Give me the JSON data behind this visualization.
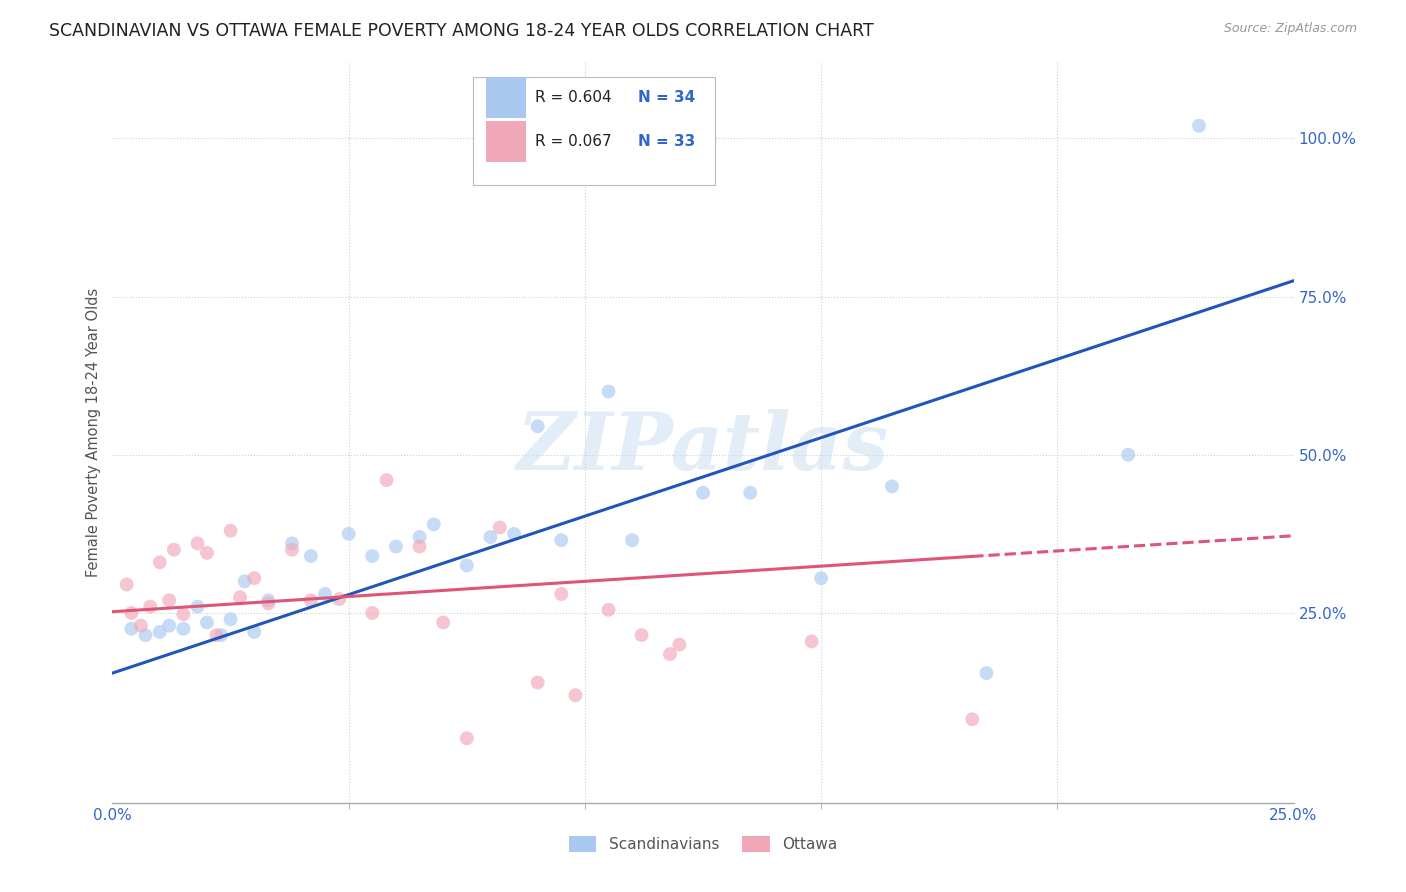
{
  "title": "SCANDINAVIAN VS OTTAWA FEMALE POVERTY AMONG 18-24 YEAR OLDS CORRELATION CHART",
  "source": "Source: ZipAtlas.com",
  "ylabel": "Female Poverty Among 18-24 Year Olds",
  "xlim": [
    0.0,
    0.25
  ],
  "ylim": [
    -0.05,
    1.12
  ],
  "xtick_labels": [
    "0.0%",
    "25.0%"
  ],
  "xtick_positions": [
    0.0,
    0.25
  ],
  "ytick_labels": [
    "25.0%",
    "50.0%",
    "75.0%",
    "100.0%"
  ],
  "ytick_positions": [
    0.25,
    0.5,
    0.75,
    1.0
  ],
  "background_color": "#ffffff",
  "grid_color": "#d0d0d0",
  "scandinavian_color": "#a8c8f0",
  "ottawa_color": "#f0a8b8",
  "trend_blue": "#2255bb",
  "trend_pink": "#dd5577",
  "legend_R_color": "#222222",
  "legend_N_color": "#3366cc",
  "legend_label_blue": "Scandinavians",
  "legend_label_pink": "Ottawa",
  "legend_R_blue": "R = 0.604",
  "legend_N_blue": "N = 34",
  "legend_R_pink": "R = 0.067",
  "legend_N_pink": "N = 33",
  "watermark_text": "ZIPatlas",
  "marker_size": 100,
  "marker_alpha": 0.65,
  "scandinavian_x": [
    0.004,
    0.007,
    0.01,
    0.012,
    0.015,
    0.018,
    0.02,
    0.023,
    0.025,
    0.028,
    0.03,
    0.033,
    0.038,
    0.042,
    0.045,
    0.05,
    0.055,
    0.06,
    0.065,
    0.068,
    0.075,
    0.08,
    0.085,
    0.09,
    0.095,
    0.105,
    0.11,
    0.125,
    0.135,
    0.15,
    0.165,
    0.185,
    0.215,
    0.23
  ],
  "scandinavian_y": [
    0.225,
    0.215,
    0.22,
    0.23,
    0.225,
    0.26,
    0.235,
    0.215,
    0.24,
    0.3,
    0.22,
    0.27,
    0.36,
    0.34,
    0.28,
    0.375,
    0.34,
    0.355,
    0.37,
    0.39,
    0.325,
    0.37,
    0.375,
    0.545,
    0.365,
    0.6,
    0.365,
    0.44,
    0.44,
    0.305,
    0.45,
    0.155,
    0.5,
    1.02
  ],
  "ottawa_x": [
    0.003,
    0.004,
    0.006,
    0.008,
    0.01,
    0.012,
    0.013,
    0.015,
    0.018,
    0.02,
    0.022,
    0.025,
    0.027,
    0.03,
    0.033,
    0.038,
    0.042,
    0.048,
    0.055,
    0.058,
    0.065,
    0.07,
    0.075,
    0.082,
    0.09,
    0.095,
    0.098,
    0.105,
    0.112,
    0.118,
    0.12,
    0.148,
    0.182
  ],
  "ottawa_y": [
    0.295,
    0.25,
    0.23,
    0.26,
    0.33,
    0.27,
    0.35,
    0.248,
    0.36,
    0.345,
    0.215,
    0.38,
    0.275,
    0.305,
    0.265,
    0.35,
    0.27,
    0.272,
    0.25,
    0.46,
    0.355,
    0.235,
    0.052,
    0.385,
    0.14,
    0.28,
    0.12,
    0.255,
    0.215,
    0.185,
    0.2,
    0.205,
    0.082
  ],
  "trend_blue_x0": 0.0,
  "trend_blue_y0": 0.155,
  "trend_blue_x1": 0.25,
  "trend_blue_y1": 0.775,
  "trend_pink_x0": 0.0,
  "trend_pink_y0": 0.252,
  "trend_pink_x1": 0.25,
  "trend_pink_y1": 0.372
}
